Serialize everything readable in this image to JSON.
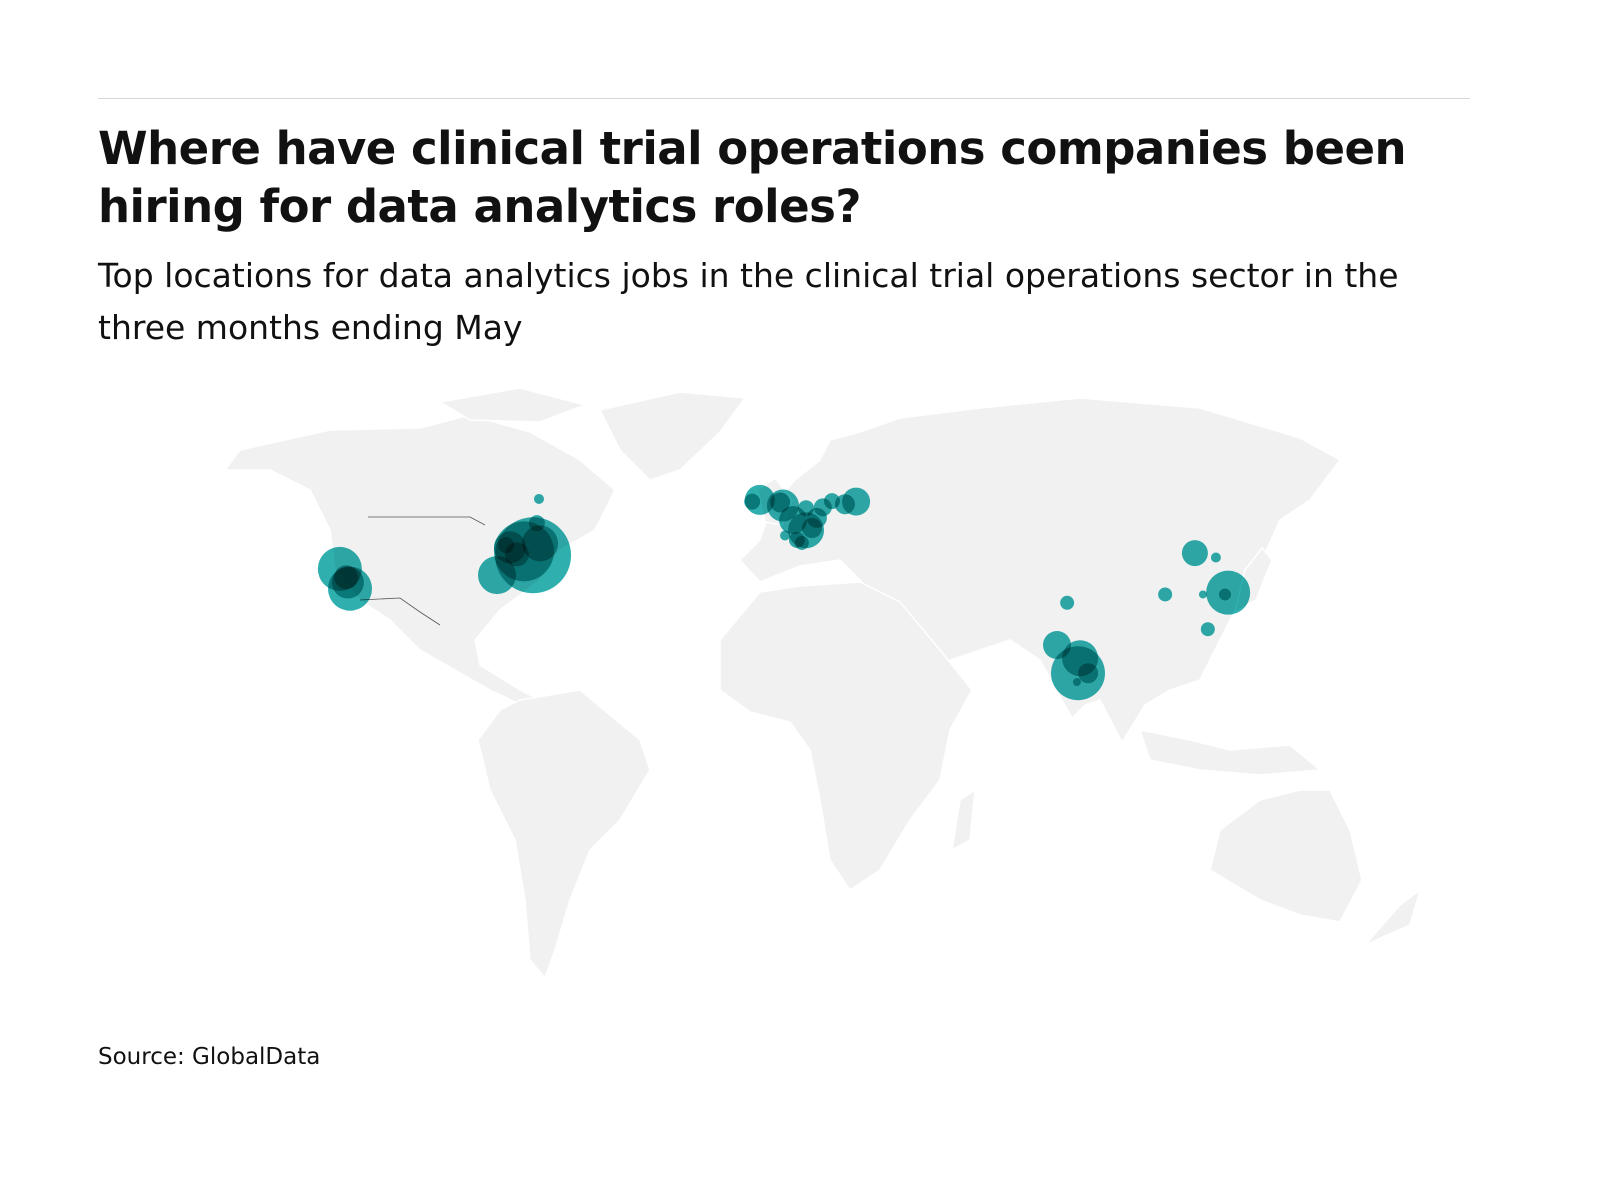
{
  "title": "Where have clinical trial operations companies been hiring for data analytics roles?",
  "subtitle": "Top locations for data analytics jobs in the clinical trial operations sector in the three months ending May",
  "source": "Source: GlobalData",
  "colors": {
    "bubble": "#1aa6a6",
    "land": "#f1f1f1",
    "borders": "#555555"
  },
  "chart_data": {
    "type": "bubble-map",
    "projection": "world",
    "bubbles": [
      {
        "region": "US West",
        "lon": -122.9,
        "lat": 37.2,
        "size": 484
      },
      {
        "region": "US West",
        "lon": -120.0,
        "lat": 32.7,
        "size": 484
      },
      {
        "region": "US West",
        "lon": -120.6,
        "lat": 34.1,
        "size": 256
      },
      {
        "region": "US West",
        "lon": -121.1,
        "lat": 35.3,
        "size": 144
      },
      {
        "region": "US Northeast",
        "lon": -67.7,
        "lat": 40.3,
        "size": 1444
      },
      {
        "region": "US Northeast",
        "lon": -70.3,
        "lat": 41.2,
        "size": 900
      },
      {
        "region": "US Northeast",
        "lon": -65.7,
        "lat": 43.0,
        "size": 324
      },
      {
        "region": "US Northeast",
        "lon": -78.0,
        "lat": 35.8,
        "size": 361
      },
      {
        "region": "US Northeast",
        "lon": -74.3,
        "lat": 42.1,
        "size": 256
      },
      {
        "region": "US Northeast",
        "lon": -72.3,
        "lat": 40.5,
        "size": 144
      },
      {
        "region": "US Northeast",
        "lon": -66.6,
        "lat": 47.6,
        "size": 64
      },
      {
        "region": "US Northeast",
        "lon": -75.4,
        "lat": 42.6,
        "size": 64
      },
      {
        "region": "Canada",
        "lon": -66.0,
        "lat": 53.1,
        "size": 25
      },
      {
        "region": "Europe",
        "lon": -2.9,
        "lat": 52.9,
        "size": 225
      },
      {
        "region": "Europe",
        "lon": -5.1,
        "lat": 52.5,
        "size": 64
      },
      {
        "region": "Europe",
        "lon": 3.7,
        "lat": 51.6,
        "size": 256
      },
      {
        "region": "Europe",
        "lon": 2.9,
        "lat": 52.3,
        "size": 100
      },
      {
        "region": "Europe",
        "lon": 6.6,
        "lat": 48.3,
        "size": 196
      },
      {
        "region": "Europe",
        "lon": 10.3,
        "lat": 46.0,
        "size": 324
      },
      {
        "region": "Europe",
        "lon": 12.0,
        "lat": 46.5,
        "size": 100
      },
      {
        "region": "Europe",
        "lon": 13.4,
        "lat": 48.8,
        "size": 100
      },
      {
        "region": "Europe",
        "lon": 7.7,
        "lat": 43.8,
        "size": 64
      },
      {
        "region": "Europe",
        "lon": 9.1,
        "lat": 43.1,
        "size": 49
      },
      {
        "region": "Europe",
        "lon": 4.3,
        "lat": 44.8,
        "size": 25
      },
      {
        "region": "Europe",
        "lon": 17.7,
        "lat": 52.6,
        "size": 64
      },
      {
        "region": "Europe",
        "lon": 21.4,
        "lat": 51.9,
        "size": 100
      },
      {
        "region": "Europe",
        "lon": 24.6,
        "lat": 52.5,
        "size": 196
      },
      {
        "region": "Europe",
        "lon": 15.1,
        "lat": 51.2,
        "size": 81
      },
      {
        "region": "Europe",
        "lon": 10.3,
        "lat": 51.0,
        "size": 64
      },
      {
        "region": "Asia",
        "lon": 121.4,
        "lat": 40.8,
        "size": 169
      },
      {
        "region": "Asia",
        "lon": 127.4,
        "lat": 39.8,
        "size": 25
      },
      {
        "region": "Asia",
        "lon": 130.9,
        "lat": 31.8,
        "size": 484
      },
      {
        "region": "Asia",
        "lon": 130.0,
        "lat": 31.4,
        "size": 36
      },
      {
        "region": "Asia",
        "lon": 123.7,
        "lat": 31.4,
        "size": 16
      },
      {
        "region": "Asia",
        "lon": 112.9,
        "lat": 31.4,
        "size": 49
      },
      {
        "region": "Asia",
        "lon": 125.1,
        "lat": 23.5,
        "size": 49
      },
      {
        "region": "Asia",
        "lon": 84.9,
        "lat": 29.5,
        "size": 49
      },
      {
        "region": "India",
        "lon": 82.0,
        "lat": 19.9,
        "size": 196
      },
      {
        "region": "India",
        "lon": 88.6,
        "lat": 16.9,
        "size": 324
      },
      {
        "region": "India",
        "lon": 88.0,
        "lat": 13.5,
        "size": 729
      },
      {
        "region": "India",
        "lon": 90.9,
        "lat": 13.5,
        "size": 100
      },
      {
        "region": "India",
        "lon": 87.7,
        "lat": 11.5,
        "size": 16
      }
    ]
  }
}
